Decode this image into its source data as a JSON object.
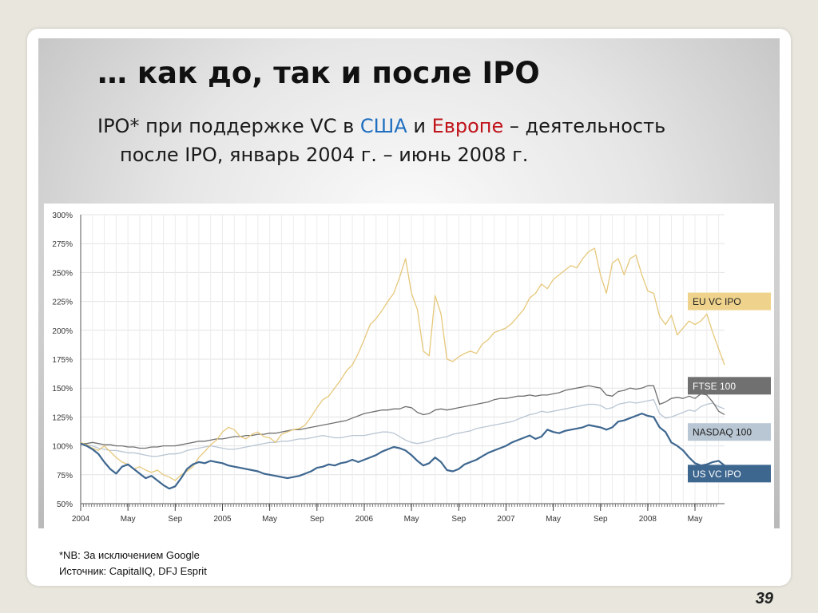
{
  "slide": {
    "title": "… как до, так и после IPO",
    "subtitle_part1": "IPO* при поддержке VC в ",
    "subtitle_us": "США",
    "subtitle_and": " и ",
    "subtitle_eu": "Европе",
    "subtitle_part2": " – деятельность",
    "subtitle_line2": "после IPO, январь 2004 г. – июнь 2008 г.",
    "footnote": "*NB: За исключением Google",
    "source": "Источник: CapitalIQ, DFJ Esprit",
    "page_number": "39"
  },
  "colors": {
    "eu_vc_ipo": "#e6c87a",
    "ftse_100": "#707070",
    "nasdaq_100": "#b9c6d3",
    "us_vc_ipo": "#3e6790",
    "eu_label_bg": "#efd38c",
    "us_word": "#1f6fc0",
    "eu_word": "#c0141b"
  },
  "chart_data": {
    "type": "line",
    "y_unit": "%",
    "ylim": [
      50,
      300
    ],
    "y_ticks": [
      "50%",
      "75%",
      "100%",
      "125%",
      "150%",
      "175%",
      "200%",
      "225%",
      "250%",
      "275%",
      "300%"
    ],
    "x_range": [
      "2004-01",
      "2008-06"
    ],
    "x_tick_labels": [
      {
        "label": "2004",
        "month": 0
      },
      {
        "label": "May",
        "month": 4
      },
      {
        "label": "Sep",
        "month": 8
      },
      {
        "label": "2005",
        "month": 12
      },
      {
        "label": "May",
        "month": 16
      },
      {
        "label": "Sep",
        "month": 20
      },
      {
        "label": "2006",
        "month": 24
      },
      {
        "label": "May",
        "month": 28
      },
      {
        "label": "Sep",
        "month": 32
      },
      {
        "label": "2007",
        "month": 36
      },
      {
        "label": "May",
        "month": 40
      },
      {
        "label": "Sep",
        "month": 44
      },
      {
        "label": "2008",
        "month": 48
      },
      {
        "label": "May",
        "month": 52
      }
    ],
    "grid": true,
    "series": [
      {
        "name": "EU VC IPO",
        "color_key": "eu_vc_ipo",
        "x": [
          0,
          0.5,
          1,
          1.5,
          2,
          2.5,
          3,
          3.5,
          4,
          4.5,
          5,
          5.5,
          6,
          6.5,
          7,
          7.5,
          8,
          8.5,
          9,
          9.5,
          10,
          10.5,
          11,
          11.5,
          12,
          12.5,
          13,
          13.5,
          14,
          14.5,
          15,
          15.5,
          16,
          16.5,
          17,
          17.5,
          18,
          18.5,
          19,
          19.5,
          20,
          20.5,
          21,
          21.5,
          22,
          22.5,
          23,
          23.5,
          24,
          24.5,
          25,
          25.5,
          26,
          26.5,
          27,
          27.5,
          28,
          28.5,
          29,
          29.5,
          30,
          30.5,
          31,
          31.5,
          32,
          32.5,
          33,
          33.5,
          34,
          34.5,
          35,
          35.5,
          36,
          36.5,
          37,
          37.5,
          38,
          38.5,
          39,
          39.5,
          40,
          40.5,
          41,
          41.5,
          42,
          42.5,
          43,
          43.5,
          44,
          44.5,
          45,
          45.5,
          46,
          46.5,
          47,
          47.5,
          48,
          48.5,
          49,
          49.5,
          50,
          50.5,
          51,
          51.5,
          52,
          52.5,
          53,
          53.5,
          54,
          54.5
        ],
        "values": [
          103,
          101,
          98,
          96,
          100,
          95,
          90,
          86,
          84,
          80,
          82,
          79,
          77,
          79,
          75,
          73,
          70,
          75,
          78,
          82,
          90,
          95,
          101,
          105,
          112,
          116,
          114,
          108,
          106,
          110,
          112,
          108,
          107,
          103,
          110,
          112,
          114,
          115,
          118,
          125,
          133,
          140,
          143,
          150,
          157,
          165,
          170,
          180,
          192,
          205,
          210,
          217,
          225,
          232,
          246,
          262,
          232,
          218,
          182,
          178,
          230,
          214,
          175,
          173,
          177,
          180,
          182,
          180,
          188,
          192,
          198,
          200,
          202,
          206,
          212,
          218,
          228,
          232,
          240,
          236,
          244,
          248,
          252,
          256,
          254,
          262,
          268,
          271,
          248,
          232,
          258,
          262,
          248,
          262,
          265,
          248,
          234,
          232,
          212,
          205,
          213,
          196,
          202,
          208,
          205,
          208,
          214,
          198,
          184,
          170
        ]
      },
      {
        "name": "FTSE 100",
        "color_key": "ftse_100",
        "x": [
          0,
          0.5,
          1,
          1.5,
          2,
          2.5,
          3,
          3.5,
          4,
          4.5,
          5,
          5.5,
          6,
          6.5,
          7,
          7.5,
          8,
          8.5,
          9,
          9.5,
          10,
          10.5,
          11,
          11.5,
          12,
          12.5,
          13,
          13.5,
          14,
          14.5,
          15,
          15.5,
          16,
          16.5,
          17,
          17.5,
          18,
          18.5,
          19,
          19.5,
          20,
          20.5,
          21,
          21.5,
          22,
          22.5,
          23,
          23.5,
          24,
          24.5,
          25,
          25.5,
          26,
          26.5,
          27,
          27.5,
          28,
          28.5,
          29,
          29.5,
          30,
          30.5,
          31,
          31.5,
          32,
          32.5,
          33,
          33.5,
          34,
          34.5,
          35,
          35.5,
          36,
          36.5,
          37,
          37.5,
          38,
          38.5,
          39,
          39.5,
          40,
          40.5,
          41,
          41.5,
          42,
          42.5,
          43,
          43.5,
          44,
          44.5,
          45,
          45.5,
          46,
          46.5,
          47,
          47.5,
          48,
          48.5,
          49,
          49.5,
          50,
          50.5,
          51,
          51.5,
          52,
          52.5,
          53,
          53.5,
          54,
          54.5
        ],
        "values": [
          102,
          102,
          103,
          102,
          101,
          101,
          100,
          100,
          99,
          99,
          98,
          98,
          99,
          99,
          100,
          100,
          100,
          101,
          102,
          103,
          104,
          104,
          105,
          106,
          106,
          107,
          108,
          108,
          109,
          109,
          110,
          110,
          111,
          111,
          112,
          113,
          114,
          114,
          115,
          116,
          117,
          118,
          119,
          120,
          121,
          122,
          124,
          126,
          128,
          129,
          130,
          131,
          131,
          132,
          132,
          134,
          133,
          129,
          127,
          128,
          131,
          132,
          131,
          132,
          133,
          134,
          135,
          136,
          137,
          138,
          140,
          141,
          141,
          142,
          143,
          143,
          144,
          143,
          144,
          144,
          145,
          146,
          148,
          149,
          150,
          151,
          152,
          151,
          150,
          144,
          143,
          147,
          148,
          150,
          149,
          150,
          152,
          152,
          136,
          138,
          141,
          142,
          141,
          143,
          141,
          145,
          144,
          138,
          130,
          127
        ]
      },
      {
        "name": "NASDAQ 100",
        "color_key": "nasdaq_100",
        "x": [
          0,
          0.5,
          1,
          1.5,
          2,
          2.5,
          3,
          3.5,
          4,
          4.5,
          5,
          5.5,
          6,
          6.5,
          7,
          7.5,
          8,
          8.5,
          9,
          9.5,
          10,
          10.5,
          11,
          11.5,
          12,
          12.5,
          13,
          13.5,
          14,
          14.5,
          15,
          15.5,
          16,
          16.5,
          17,
          17.5,
          18,
          18.5,
          19,
          19.5,
          20,
          20.5,
          21,
          21.5,
          22,
          22.5,
          23,
          23.5,
          24,
          24.5,
          25,
          25.5,
          26,
          26.5,
          27,
          27.5,
          28,
          28.5,
          29,
          29.5,
          30,
          30.5,
          31,
          31.5,
          32,
          32.5,
          33,
          33.5,
          34,
          34.5,
          35,
          35.5,
          36,
          36.5,
          37,
          37.5,
          38,
          38.5,
          39,
          39.5,
          40,
          40.5,
          41,
          41.5,
          42,
          42.5,
          43,
          43.5,
          44,
          44.5,
          45,
          45.5,
          46,
          46.5,
          47,
          47.5,
          48,
          48.5,
          49,
          49.5,
          50,
          50.5,
          51,
          51.5,
          52,
          52.5,
          53,
          53.5,
          54,
          54.5
        ],
        "values": [
          102,
          101,
          100,
          98,
          97,
          96,
          96,
          95,
          94,
          94,
          93,
          92,
          91,
          91,
          92,
          93,
          93,
          94,
          96,
          97,
          98,
          99,
          100,
          99,
          98,
          97,
          97,
          98,
          99,
          100,
          101,
          102,
          103,
          103,
          104,
          104,
          105,
          106,
          106,
          107,
          108,
          109,
          108,
          107,
          107,
          108,
          109,
          109,
          109,
          110,
          111,
          112,
          112,
          111,
          108,
          105,
          103,
          102,
          103,
          104,
          106,
          107,
          108,
          110,
          111,
          112,
          113,
          115,
          116,
          117,
          118,
          119,
          120,
          121,
          123,
          125,
          127,
          128,
          130,
          129,
          130,
          131,
          132,
          133,
          134,
          135,
          136,
          136,
          135,
          132,
          133,
          136,
          137,
          138,
          137,
          138,
          139,
          140,
          128,
          124,
          125,
          127,
          129,
          131,
          130,
          134,
          136,
          137,
          134,
          132
        ]
      },
      {
        "name": "US VC IPO",
        "color_key": "us_vc_ipo",
        "x": [
          0,
          0.5,
          1,
          1.5,
          2,
          2.5,
          3,
          3.5,
          4,
          4.5,
          5,
          5.5,
          6,
          6.5,
          7,
          7.5,
          8,
          8.5,
          9,
          9.5,
          10,
          10.5,
          11,
          11.5,
          12,
          12.5,
          13,
          13.5,
          14,
          14.5,
          15,
          15.5,
          16,
          16.5,
          17,
          17.5,
          18,
          18.5,
          19,
          19.5,
          20,
          20.5,
          21,
          21.5,
          22,
          22.5,
          23,
          23.5,
          24,
          24.5,
          25,
          25.5,
          26,
          26.5,
          27,
          27.5,
          28,
          28.5,
          29,
          29.5,
          30,
          30.5,
          31,
          31.5,
          32,
          32.5,
          33,
          33.5,
          34,
          34.5,
          35,
          35.5,
          36,
          36.5,
          37,
          37.5,
          38,
          38.5,
          39,
          39.5,
          40,
          40.5,
          41,
          41.5,
          42,
          42.5,
          43,
          43.5,
          44,
          44.5,
          45,
          45.5,
          46,
          46.5,
          47,
          47.5,
          48,
          48.5,
          49,
          49.5,
          50,
          50.5,
          51,
          51.5,
          52,
          52.5,
          53,
          53.5,
          54,
          54.5
        ],
        "values": [
          102,
          100,
          97,
          93,
          86,
          80,
          76,
          82,
          84,
          80,
          76,
          72,
          74,
          70,
          66,
          63,
          65,
          72,
          80,
          84,
          86,
          85,
          87,
          86,
          85,
          83,
          82,
          81,
          80,
          79,
          78,
          76,
          75,
          74,
          73,
          72,
          73,
          74,
          76,
          78,
          81,
          82,
          84,
          83,
          85,
          86,
          88,
          86,
          88,
          90,
          92,
          95,
          97,
          99,
          98,
          96,
          92,
          87,
          83,
          85,
          90,
          86,
          79,
          78,
          80,
          84,
          86,
          88,
          91,
          94,
          96,
          98,
          100,
          103,
          105,
          107,
          109,
          106,
          108,
          114,
          112,
          111,
          113,
          114,
          115,
          116,
          118,
          117,
          116,
          114,
          116,
          121,
          122,
          124,
          126,
          128,
          126,
          125,
          116,
          112,
          103,
          100,
          96,
          90,
          85,
          83,
          84,
          86,
          87,
          83
        ]
      }
    ],
    "legend": [
      {
        "label": "EU VC IPO",
        "series": 0,
        "y": 225
      },
      {
        "label": "FTSE 100",
        "series": 1,
        "y": 152
      },
      {
        "label": "NASDAQ 100",
        "series": 2,
        "y": 112
      },
      {
        "label": "US VC IPO",
        "series": 3,
        "y": 76
      }
    ],
    "legend_placement": "right"
  }
}
